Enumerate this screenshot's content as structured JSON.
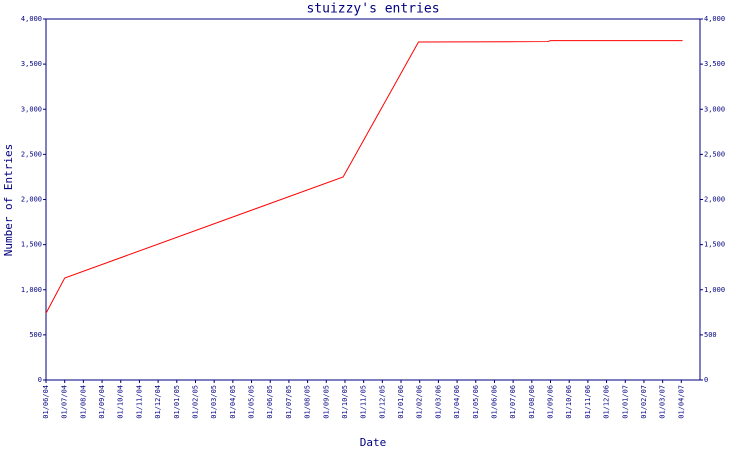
{
  "chart_data": {
    "type": "line",
    "title": "stuizzy's entries",
    "x_label": "Date",
    "y_label": "Number of Entries",
    "x": [
      "01/06/04",
      "01/07/04",
      "28/09/05",
      "29/01/06",
      "27/08/06",
      "01/09/06",
      "03/04/07"
    ],
    "values": [
      740,
      1130,
      2250,
      3745,
      3750,
      3760,
      3760
    ],
    "color": "#ff0000",
    "xlim": [
      "01/06/04",
      "01/05/07"
    ],
    "xticks": [
      "01/06/04",
      "01/07/04",
      "01/08/04",
      "01/09/04",
      "01/10/04",
      "01/11/04",
      "01/12/04",
      "01/01/05",
      "01/02/05",
      "01/03/05",
      "01/04/05",
      "01/05/05",
      "01/06/05",
      "01/07/05",
      "01/08/05",
      "01/09/05",
      "01/10/05",
      "01/11/05",
      "01/12/05",
      "01/01/06",
      "01/02/06",
      "01/03/06",
      "01/04/06",
      "01/05/06",
      "01/06/06",
      "01/07/06",
      "01/08/06",
      "01/09/06",
      "01/10/06",
      "01/11/06",
      "01/12/06",
      "01/01/07",
      "01/02/07",
      "01/03/07",
      "01/04/07"
    ],
    "ylim": [
      0,
      4000
    ],
    "yticks": [
      0,
      500,
      {
        "value": 1000,
        "label": "1,000"
      },
      {
        "value": 1500,
        "label": "1,500"
      },
      {
        "value": 2000,
        "label": "2,000"
      },
      {
        "value": 2500,
        "label": "2,500"
      },
      {
        "value": 3000,
        "label": "3,000"
      },
      {
        "value": 3500,
        "label": "3,500"
      },
      {
        "value": 4000,
        "label": "4,000"
      }
    ],
    "y2lim": [
      0,
      4000
    ],
    "y2ticks": [
      0,
      500,
      {
        "value": 1000,
        "label": "1,000"
      },
      {
        "value": 1500,
        "label": "1,500"
      },
      {
        "value": 2000,
        "label": "2,000"
      },
      {
        "value": 2500,
        "label": "2,500"
      },
      {
        "value": 3000,
        "label": "3,000"
      },
      {
        "value": 3500,
        "label": "3,500"
      },
      {
        "value": 4000,
        "label": "4,000"
      }
    ],
    "grid": false
  }
}
